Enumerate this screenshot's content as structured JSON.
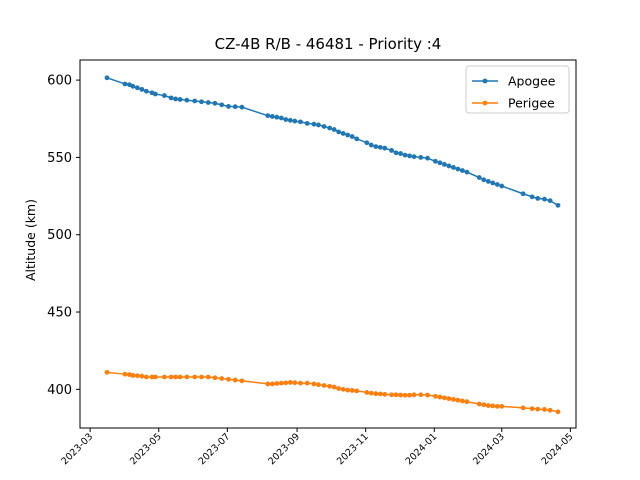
{
  "chart_data": {
    "type": "line",
    "title": "CZ-4B R/B - 46481 - Priority :4",
    "xlabel": "",
    "ylabel": "Altitude (km)",
    "xlim": [
      "2023-02-20",
      "2024-05-06"
    ],
    "ylim": [
      375,
      613
    ],
    "x_ticks": [
      "2023-03",
      "2023-05",
      "2023-07",
      "2023-09",
      "2023-11",
      "2024-01",
      "2024-03",
      "2024-05"
    ],
    "y_ticks": [
      400,
      450,
      500,
      550,
      600
    ],
    "legend": "top-right",
    "grid": false,
    "series": [
      {
        "name": "Apogee",
        "color": "#1f77b4",
        "points": [
          [
            "2023-03-16",
            601.5
          ],
          [
            "2023-04-01",
            597.5
          ],
          [
            "2023-04-05",
            597.0
          ],
          [
            "2023-04-08",
            596.0
          ],
          [
            "2023-04-12",
            595.0
          ],
          [
            "2023-04-16",
            594.0
          ],
          [
            "2023-04-20",
            592.8
          ],
          [
            "2023-04-25",
            591.8
          ],
          [
            "2023-04-28",
            591.0
          ],
          [
            "2023-05-06",
            590.0
          ],
          [
            "2023-05-12",
            588.5
          ],
          [
            "2023-05-16",
            587.8
          ],
          [
            "2023-05-20",
            587.5
          ],
          [
            "2023-05-26",
            587.0
          ],
          [
            "2023-06-02",
            586.5
          ],
          [
            "2023-06-08",
            586.0
          ],
          [
            "2023-06-14",
            585.5
          ],
          [
            "2023-06-20",
            585.0
          ],
          [
            "2023-06-26",
            584.0
          ],
          [
            "2023-07-02",
            583.0
          ],
          [
            "2023-07-08",
            582.8
          ],
          [
            "2023-07-14",
            582.5
          ],
          [
            "2023-08-06",
            577.0
          ],
          [
            "2023-08-10",
            576.5
          ],
          [
            "2023-08-14",
            576.0
          ],
          [
            "2023-08-18",
            575.5
          ],
          [
            "2023-08-22",
            574.5
          ],
          [
            "2023-08-26",
            574.0
          ],
          [
            "2023-08-30",
            573.5
          ],
          [
            "2023-09-04",
            573.0
          ],
          [
            "2023-09-10",
            572.0
          ],
          [
            "2023-09-16",
            571.5
          ],
          [
            "2023-09-20",
            571.0
          ],
          [
            "2023-09-25",
            570.0
          ],
          [
            "2023-09-30",
            569.0
          ],
          [
            "2023-10-04",
            568.0
          ],
          [
            "2023-10-08",
            566.5
          ],
          [
            "2023-10-12",
            565.5
          ],
          [
            "2023-10-16",
            564.5
          ],
          [
            "2023-10-20",
            563.5
          ],
          [
            "2023-10-24",
            562.0
          ],
          [
            "2023-11-02",
            559.5
          ],
          [
            "2023-11-06",
            558.0
          ],
          [
            "2023-11-10",
            557.0
          ],
          [
            "2023-11-14",
            556.5
          ],
          [
            "2023-11-18",
            556.0
          ],
          [
            "2023-11-24",
            554.5
          ],
          [
            "2023-11-28",
            553.0
          ],
          [
            "2023-12-02",
            552.5
          ],
          [
            "2023-12-06",
            551.5
          ],
          [
            "2023-12-10",
            551.0
          ],
          [
            "2023-12-14",
            550.5
          ],
          [
            "2023-12-20",
            550.0
          ],
          [
            "2023-12-26",
            549.5
          ],
          [
            "2024-01-02",
            547.5
          ],
          [
            "2024-01-06",
            546.5
          ],
          [
            "2024-01-10",
            545.5
          ],
          [
            "2024-01-14",
            544.5
          ],
          [
            "2024-01-18",
            543.5
          ],
          [
            "2024-01-22",
            542.5
          ],
          [
            "2024-01-26",
            541.5
          ],
          [
            "2024-01-30",
            540.5
          ],
          [
            "2024-02-10",
            537.0
          ],
          [
            "2024-02-14",
            535.5
          ],
          [
            "2024-02-18",
            534.5
          ],
          [
            "2024-02-22",
            533.5
          ],
          [
            "2024-02-26",
            532.5
          ],
          [
            "2024-03-01",
            531.5
          ],
          [
            "2024-03-20",
            526.5
          ],
          [
            "2024-03-28",
            524.5
          ],
          [
            "2024-04-02",
            523.5
          ],
          [
            "2024-04-08",
            523.0
          ],
          [
            "2024-04-13",
            522.0
          ],
          [
            "2024-04-20",
            519.0
          ]
        ]
      },
      {
        "name": "Perigee",
        "color": "#ff7f0e",
        "points": [
          [
            "2023-03-16",
            411.0
          ],
          [
            "2023-04-01",
            409.8
          ],
          [
            "2023-04-05",
            409.5
          ],
          [
            "2023-04-08",
            409.0
          ],
          [
            "2023-04-12",
            408.8
          ],
          [
            "2023-04-16",
            408.5
          ],
          [
            "2023-04-20",
            408.0
          ],
          [
            "2023-04-25",
            408.0
          ],
          [
            "2023-04-28",
            408.0
          ],
          [
            "2023-05-06",
            408.0
          ],
          [
            "2023-05-12",
            408.0
          ],
          [
            "2023-05-16",
            408.0
          ],
          [
            "2023-05-20",
            408.0
          ],
          [
            "2023-05-26",
            408.0
          ],
          [
            "2023-06-02",
            408.0
          ],
          [
            "2023-06-08",
            408.0
          ],
          [
            "2023-06-14",
            408.0
          ],
          [
            "2023-06-20",
            407.5
          ],
          [
            "2023-06-26",
            407.0
          ],
          [
            "2023-07-02",
            406.5
          ],
          [
            "2023-07-08",
            406.0
          ],
          [
            "2023-07-14",
            405.5
          ],
          [
            "2023-08-06",
            403.5
          ],
          [
            "2023-08-10",
            403.5
          ],
          [
            "2023-08-14",
            403.8
          ],
          [
            "2023-08-18",
            404.0
          ],
          [
            "2023-08-22",
            404.2
          ],
          [
            "2023-08-26",
            404.5
          ],
          [
            "2023-08-30",
            404.3
          ],
          [
            "2023-09-04",
            404.0
          ],
          [
            "2023-09-10",
            404.0
          ],
          [
            "2023-09-16",
            403.5
          ],
          [
            "2023-09-20",
            403.0
          ],
          [
            "2023-09-25",
            402.5
          ],
          [
            "2023-09-30",
            402.0
          ],
          [
            "2023-10-04",
            401.5
          ],
          [
            "2023-10-08",
            400.5
          ],
          [
            "2023-10-12",
            400.0
          ],
          [
            "2023-10-16",
            399.5
          ],
          [
            "2023-10-20",
            399.3
          ],
          [
            "2023-10-24",
            399.0
          ],
          [
            "2023-11-02",
            398.0
          ],
          [
            "2023-11-06",
            397.5
          ],
          [
            "2023-11-10",
            397.2
          ],
          [
            "2023-11-14",
            397.0
          ],
          [
            "2023-11-18",
            396.8
          ],
          [
            "2023-11-24",
            396.5
          ],
          [
            "2023-11-28",
            396.5
          ],
          [
            "2023-12-02",
            396.3
          ],
          [
            "2023-12-06",
            396.2
          ],
          [
            "2023-12-10",
            396.2
          ],
          [
            "2023-12-14",
            396.5
          ],
          [
            "2023-12-20",
            396.5
          ],
          [
            "2023-12-26",
            396.3
          ],
          [
            "2024-01-02",
            395.5
          ],
          [
            "2024-01-06",
            395.0
          ],
          [
            "2024-01-10",
            394.5
          ],
          [
            "2024-01-14",
            394.0
          ],
          [
            "2024-01-18",
            393.5
          ],
          [
            "2024-01-22",
            393.0
          ],
          [
            "2024-01-26",
            392.5
          ],
          [
            "2024-01-30",
            392.0
          ],
          [
            "2024-02-10",
            390.5
          ],
          [
            "2024-02-14",
            390.0
          ],
          [
            "2024-02-18",
            389.5
          ],
          [
            "2024-02-22",
            389.3
          ],
          [
            "2024-02-26",
            389.0
          ],
          [
            "2024-03-01",
            389.0
          ],
          [
            "2024-03-20",
            388.0
          ],
          [
            "2024-03-28",
            387.5
          ],
          [
            "2024-04-02",
            387.2
          ],
          [
            "2024-04-08",
            387.0
          ],
          [
            "2024-04-13",
            386.5
          ],
          [
            "2024-04-20",
            385.5
          ]
        ]
      }
    ]
  }
}
